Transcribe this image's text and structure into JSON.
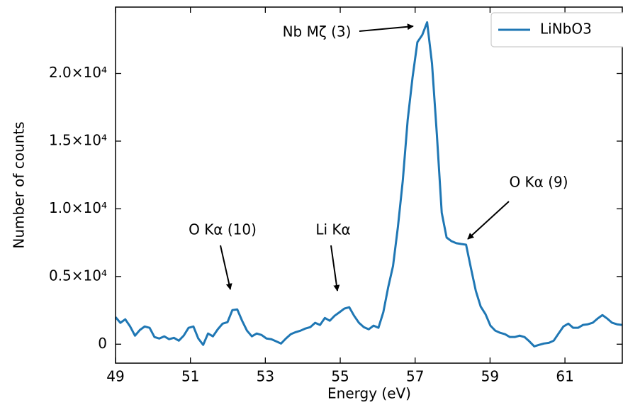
{
  "chart_data": {
    "type": "line",
    "x_label": "Energy (eV)",
    "y_label": "Number of counts",
    "x": [
      49,
      49.13,
      49.26,
      49.39,
      49.52,
      49.65,
      49.78,
      49.91,
      50.04,
      50.17,
      50.3,
      50.43,
      50.56,
      50.69,
      50.82,
      50.95,
      51.08,
      51.21,
      51.34,
      51.47,
      51.6,
      51.73,
      51.86,
      51.99,
      52.12,
      52.25,
      52.38,
      52.51,
      52.64,
      52.77,
      52.9,
      53.03,
      53.16,
      53.29,
      53.42,
      53.55,
      53.68,
      53.81,
      53.94,
      54.07,
      54.2,
      54.33,
      54.46,
      54.59,
      54.72,
      54.85,
      54.98,
      55.11,
      55.24,
      55.37,
      55.5,
      55.63,
      55.76,
      55.89,
      56.02,
      56.15,
      56.28,
      56.41,
      56.54,
      56.67,
      56.8,
      56.93,
      57.06,
      57.19,
      57.32,
      57.45,
      57.58,
      57.71,
      57.84,
      57.97,
      58.1,
      58.23,
      58.36,
      58.49,
      58.62,
      58.75,
      58.88,
      59.01,
      59.14,
      59.27,
      59.4,
      59.53,
      59.66,
      59.79,
      59.92,
      60.05,
      60.18,
      60.31,
      60.44,
      60.57,
      60.7,
      60.83,
      60.96,
      61.09,
      61.22,
      61.35,
      61.48,
      61.61,
      61.74,
      61.87,
      62.0,
      62.13,
      62.26,
      62.39,
      62.52
    ],
    "series": [
      {
        "name": "LiNbO3",
        "color": "#1f77b4",
        "values": [
          2000,
          1580,
          1840,
          1310,
          630,
          1050,
          1310,
          1210,
          530,
          420,
          580,
          370,
          470,
          260,
          630,
          1210,
          1310,
          420,
          -50,
          790,
          580,
          1100,
          1520,
          1630,
          2520,
          2570,
          1730,
          1000,
          580,
          790,
          680,
          420,
          370,
          210,
          50,
          420,
          740,
          890,
          1000,
          1160,
          1260,
          1580,
          1420,
          1940,
          1730,
          2100,
          2360,
          2630,
          2730,
          2100,
          1580,
          1260,
          1100,
          1370,
          1210,
          2360,
          4200,
          5780,
          8660,
          12080,
          16540,
          19690,
          22310,
          22840,
          23780,
          20740,
          15490,
          9710,
          7880,
          7610,
          7460,
          7400,
          7350,
          5620,
          3940,
          2780,
          2210,
          1370,
          1000,
          840,
          740,
          530,
          530,
          630,
          530,
          210,
          -160,
          -50,
          50,
          100,
          260,
          790,
          1310,
          1520,
          1210,
          1210,
          1420,
          1470,
          1580,
          1890,
          2150,
          1890,
          1580,
          1470,
          1420
        ]
      }
    ],
    "xlim": [
      49,
      62.55
    ],
    "xticks": [
      49,
      51,
      53,
      55,
      57,
      59,
      61
    ],
    "ylim": [
      -1400,
      24900
    ],
    "yticks": [
      0,
      {
        "value": 5000,
        "label": "0.5×10⁴"
      },
      {
        "value": 10000,
        "label": "1.0×10⁴"
      },
      {
        "value": 15000,
        "label": "1.5×10⁴"
      },
      {
        "value": 20000,
        "label": "2.0×10⁴"
      }
    ],
    "legend": "upper right",
    "annotations": [
      "Nb Mζ (3)",
      "O Kα (9)",
      "Li Kα",
      "O Kα (10)"
    ]
  }
}
